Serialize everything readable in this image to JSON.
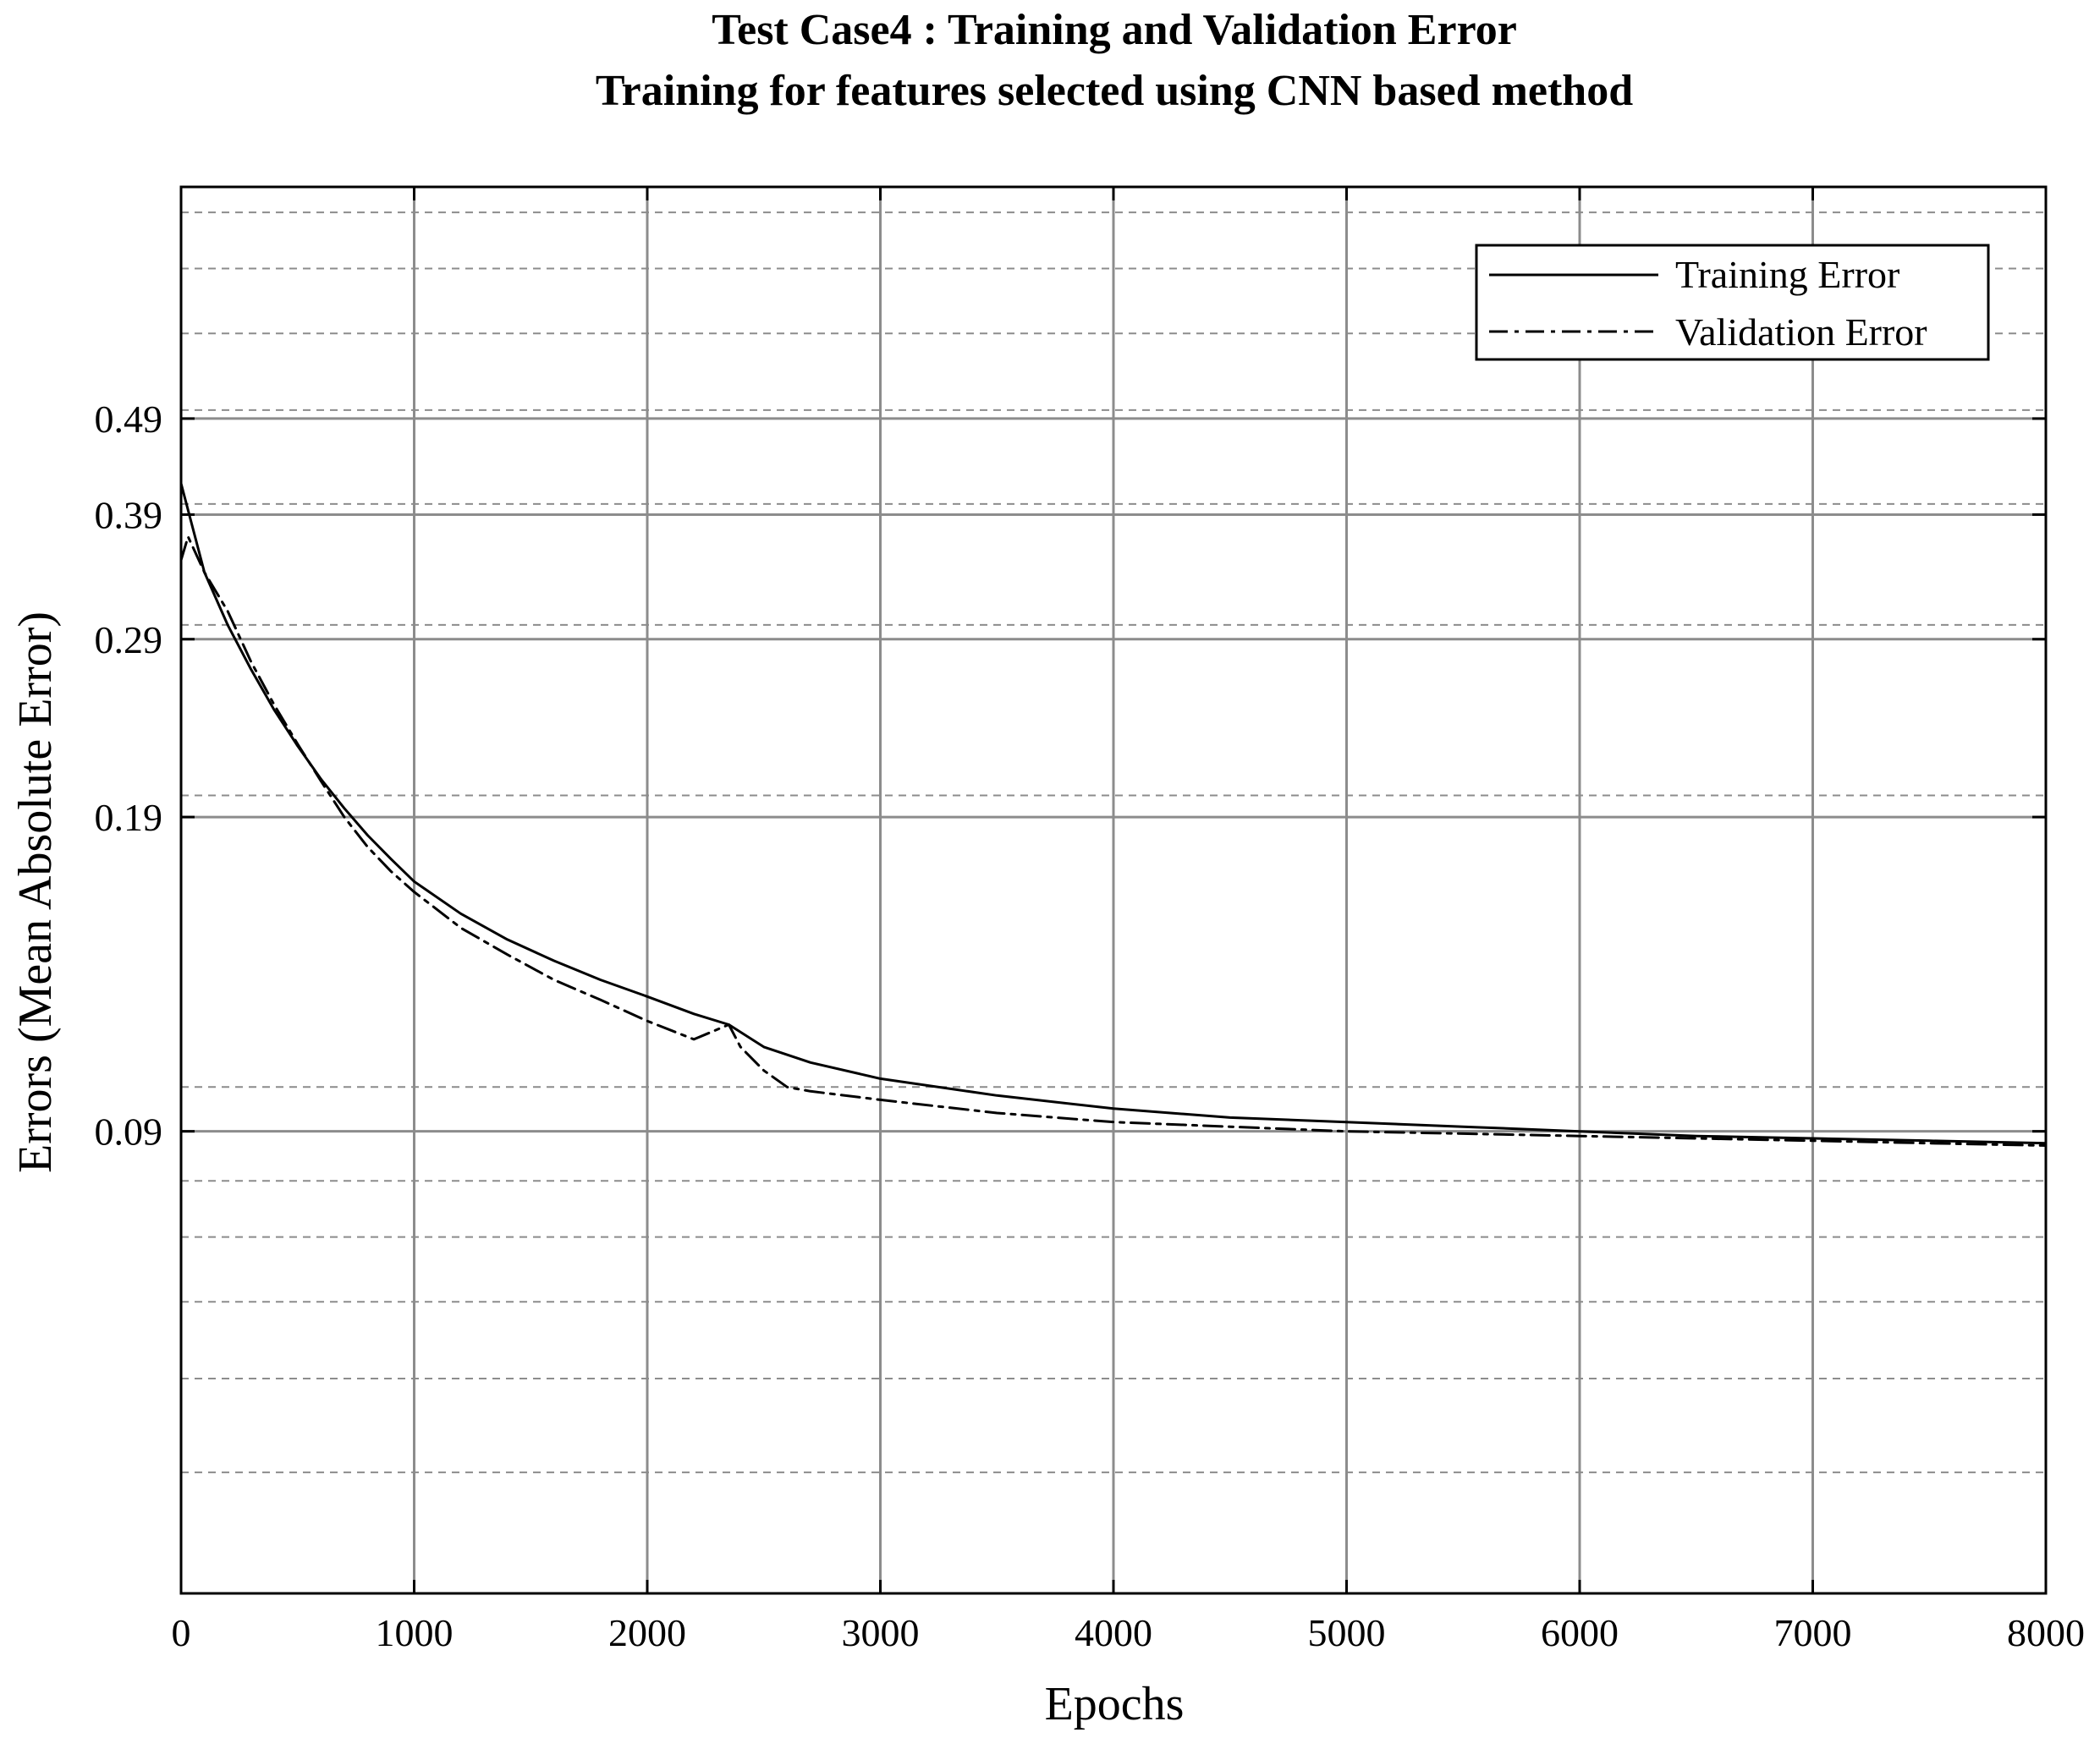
{
  "chart_data": {
    "type": "line",
    "title": "Test Case4 : Training and Validation Error",
    "subtitle": "Training for features selected using CNN based method",
    "xlabel": "Epochs",
    "ylabel": "Errors (Mean Absolute Error)",
    "xlim": [
      0,
      8000
    ],
    "x_ticks": [
      0,
      1000,
      2000,
      3000,
      4000,
      5000,
      6000,
      7000,
      8000
    ],
    "x_tick_labels": [
      "0",
      "1000",
      "2000",
      "3000",
      "4000",
      "5000",
      "6000",
      "7000",
      "8000"
    ],
    "y_scale": "log",
    "ylim": [
      0.03,
      0.85
    ],
    "y_ticks": [
      0.09,
      0.19,
      0.29,
      0.39,
      0.49
    ],
    "y_tick_labels": [
      "0.09",
      "0.19",
      "0.29",
      "0.39",
      "0.49"
    ],
    "y_minor_grid": [
      0.04,
      0.05,
      0.06,
      0.07,
      0.08,
      0.1,
      0.2,
      0.3,
      0.4,
      0.5,
      0.6,
      0.7,
      0.8
    ],
    "grid": true,
    "legend_position": "top-right",
    "series": [
      {
        "name": "Training Error",
        "style": "solid",
        "color": "#000000",
        "x": [
          0,
          100,
          200,
          300,
          400,
          500,
          600,
          700,
          800,
          900,
          1000,
          1200,
          1400,
          1600,
          1800,
          2000,
          2200,
          2350,
          2500,
          2700,
          3000,
          3500,
          4000,
          4500,
          5000,
          5500,
          6000,
          6500,
          7000,
          7500,
          8000
        ],
        "y": [
          0.42,
          0.34,
          0.3,
          0.27,
          0.245,
          0.225,
          0.208,
          0.194,
          0.182,
          0.172,
          0.163,
          0.151,
          0.142,
          0.135,
          0.129,
          0.124,
          0.119,
          0.116,
          0.11,
          0.106,
          0.102,
          0.098,
          0.095,
          0.093,
          0.092,
          0.091,
          0.09,
          0.089,
          0.0885,
          0.088,
          0.0875
        ]
      },
      {
        "name": "Validation Error",
        "style": "dash-dot",
        "color": "#000000",
        "x": [
          0,
          30,
          100,
          200,
          300,
          400,
          500,
          600,
          700,
          800,
          900,
          1000,
          1200,
          1400,
          1600,
          1800,
          2000,
          2200,
          2350,
          2400,
          2500,
          2600,
          2700,
          3000,
          3500,
          4000,
          4500,
          5000,
          5500,
          6000,
          6500,
          7000,
          7500,
          8000
        ],
        "y": [
          0.35,
          0.37,
          0.34,
          0.31,
          0.275,
          0.248,
          0.226,
          0.207,
          0.19,
          0.177,
          0.167,
          0.159,
          0.146,
          0.137,
          0.129,
          0.123,
          0.117,
          0.112,
          0.116,
          0.11,
          0.104,
          0.1,
          0.099,
          0.097,
          0.094,
          0.092,
          0.091,
          0.09,
          0.0895,
          0.089,
          0.0885,
          0.088,
          0.0875,
          0.087
        ]
      }
    ]
  }
}
